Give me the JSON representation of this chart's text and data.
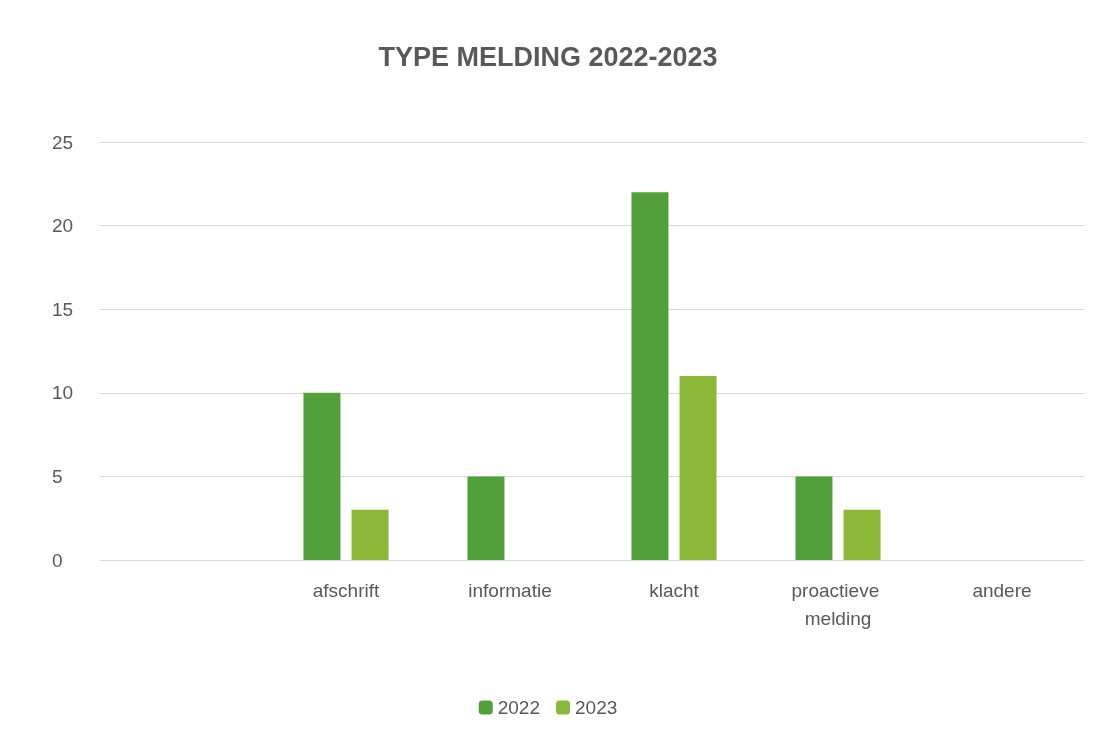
{
  "chart_data": {
    "type": "bar",
    "title": "TYPE MELDING 2022-2023",
    "categories": [
      null,
      "afschrift",
      "informatie",
      "klacht",
      "proactieve melding",
      "andere"
    ],
    "series": [
      {
        "name": "2022",
        "color": "#52a03a",
        "values": [
          null,
          10,
          5,
          22,
          5,
          0
        ]
      },
      {
        "name": "2023",
        "color": "#8cb83a",
        "values": [
          null,
          3,
          0,
          11,
          3,
          0
        ]
      }
    ],
    "ylim": [
      0,
      25
    ],
    "yticks": [
      0,
      5,
      10,
      15,
      20,
      25
    ],
    "grid": "y",
    "legend": "bottom"
  }
}
